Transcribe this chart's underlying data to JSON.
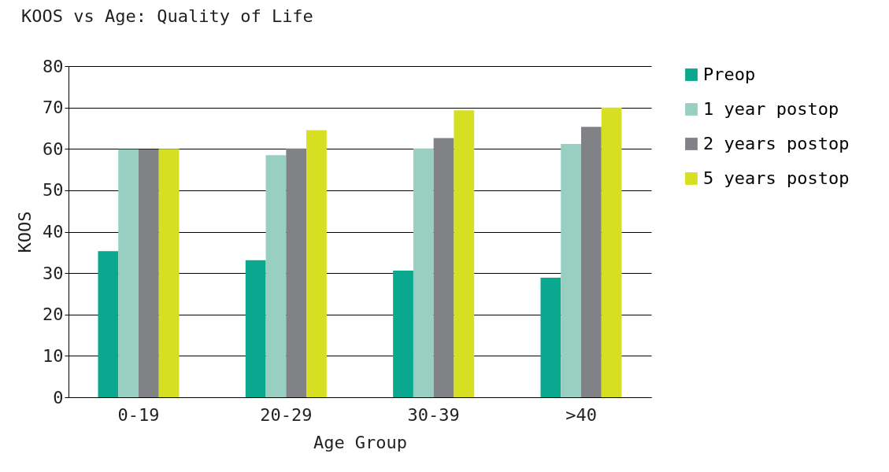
{
  "chart_data": {
    "type": "bar",
    "title": "KOOS vs Age: Quality of Life",
    "xlabel": "Age Group",
    "ylabel": "KOOS",
    "categories": [
      "0-19",
      "20-29",
      "30-39",
      ">40"
    ],
    "series": [
      {
        "name": "Preop",
        "color": "#0aa88f",
        "values": [
          35.3,
          33.1,
          30.6,
          28.9
        ]
      },
      {
        "name": "1 year postop",
        "color": "#98cfc0",
        "values": [
          59.9,
          58.5,
          60.1,
          61.2
        ]
      },
      {
        "name": "2 years postop",
        "color": "#808285",
        "values": [
          59.9,
          60.1,
          62.6,
          65.3
        ]
      },
      {
        "name": "5 years postop",
        "color": "#d7df23",
        "values": [
          60,
          64.5,
          69.3,
          70
        ]
      }
    ],
    "ylim": [
      0,
      80
    ],
    "yticks": [
      0,
      10,
      20,
      30,
      40,
      50,
      60,
      70,
      80
    ],
    "grid": "y",
    "legend": "right"
  }
}
